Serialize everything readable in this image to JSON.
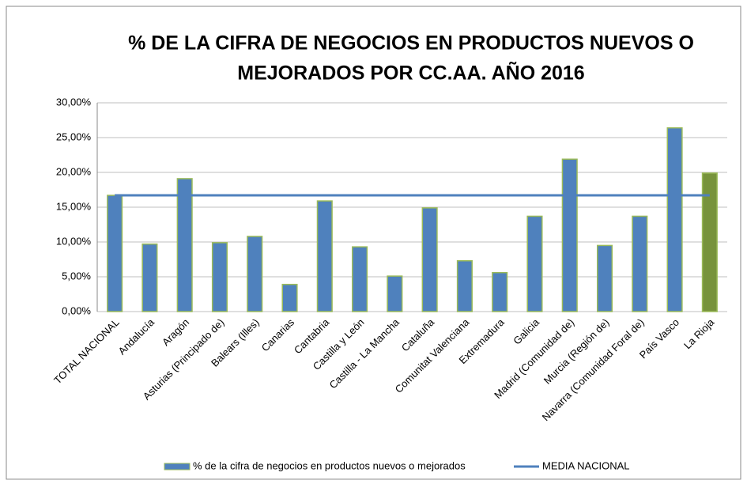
{
  "chart_data": {
    "type": "bar",
    "title": [
      "% DE LA CIFRA DE NEGOCIOS EN  PRODUCTOS NUEVOS O",
      "MEJORADOS POR CC.AA. AÑO 2016"
    ],
    "categories": [
      "TOTAL NACIONAL",
      "Andalucía",
      "Aragón",
      "Asturias (Principado de)",
      "Balears (Illes)",
      "Canarias",
      "Cantabria",
      "Castilla y León",
      "Castilla - La Mancha",
      "Cataluña",
      "Comunitat Valenciana",
      "Extremadura",
      "Galicia",
      "Madrid (Comunidad de)",
      "Murcia (Región de)",
      "Navarra (Comunidad Foral de)",
      "País Vasco",
      "La Rioja"
    ],
    "series": [
      {
        "name": "% de la cifra de negocios en productos nuevos o mejorados",
        "type": "bar",
        "color": "#4f81bd",
        "colors": [
          "#4f81bd",
          "#4f81bd",
          "#4f81bd",
          "#4f81bd",
          "#4f81bd",
          "#4f81bd",
          "#4f81bd",
          "#4f81bd",
          "#4f81bd",
          "#4f81bd",
          "#4f81bd",
          "#4f81bd",
          "#4f81bd",
          "#4f81bd",
          "#4f81bd",
          "#4f81bd",
          "#4f81bd",
          "#77933c"
        ],
        "values": [
          16.7,
          9.7,
          19.1,
          9.9,
          10.8,
          3.9,
          15.9,
          9.3,
          5.1,
          14.9,
          7.3,
          5.6,
          13.7,
          21.9,
          9.5,
          13.7,
          26.4,
          19.9
        ]
      },
      {
        "name": "MEDIA NACIONAL",
        "type": "line",
        "color": "#4f81bd",
        "values": [
          16.7,
          16.7,
          16.7,
          16.7,
          16.7,
          16.7,
          16.7,
          16.7,
          16.7,
          16.7,
          16.7,
          16.7,
          16.7,
          16.7,
          16.7,
          16.7,
          16.7,
          16.7
        ]
      }
    ],
    "ylim": [
      0,
      30
    ],
    "yticks": [
      {
        "value": 0,
        "label": "0,00%"
      },
      {
        "value": 5,
        "label": "5,00%"
      },
      {
        "value": 10,
        "label": "10,00%"
      },
      {
        "value": 15,
        "label": "15,00%"
      },
      {
        "value": 20,
        "label": "20,00%"
      },
      {
        "value": 25,
        "label": "25,00%"
      },
      {
        "value": 30,
        "label": "30,00%"
      }
    ],
    "grid": true,
    "legend": "bottom"
  }
}
